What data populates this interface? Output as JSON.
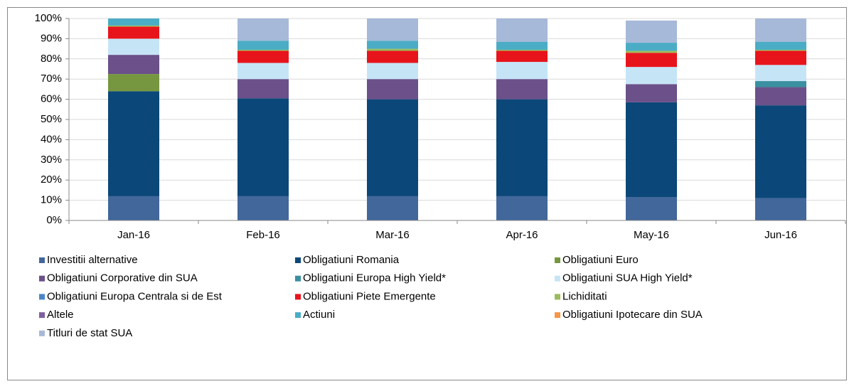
{
  "chart_data": {
    "type": "stacked_bar",
    "categories": [
      "Jan-16",
      "Feb-16",
      "Mar-16",
      "Apr-16",
      "May-16",
      "Jun-16"
    ],
    "ylim": [
      0,
      100
    ],
    "yticks": [
      {
        "value": 0,
        "label": "0%"
      },
      {
        "value": 10,
        "label": "10%"
      },
      {
        "value": 20,
        "label": "20%"
      },
      {
        "value": 30,
        "label": "30%"
      },
      {
        "value": 40,
        "label": "40%"
      },
      {
        "value": 50,
        "label": "50%"
      },
      {
        "value": 60,
        "label": "60%"
      },
      {
        "value": 70,
        "label": "70%"
      },
      {
        "value": 80,
        "label": "80%"
      },
      {
        "value": 90,
        "label": "90%"
      },
      {
        "value": 100,
        "label": "100%"
      }
    ],
    "grid": true,
    "legend": "bottom",
    "series": [
      {
        "name": "Investitii alternative",
        "color": "#41679b",
        "values": [
          12,
          12,
          12,
          12,
          11.5,
          11
        ]
      },
      {
        "name": "Obligatiuni Romania",
        "color": "#0b4778",
        "values": [
          52,
          48.5,
          48,
          48,
          47,
          46
        ]
      },
      {
        "name": "Obligatiuni Euro",
        "color": "#76973f",
        "values": [
          8.5,
          0,
          0,
          0,
          0,
          0
        ]
      },
      {
        "name": "Obligatiuni Corporative din SUA",
        "color": "#6b5089",
        "values": [
          9.5,
          9.5,
          10,
          10,
          9,
          9
        ]
      },
      {
        "name": "Obligatiuni Europa High Yield*",
        "color": "#3a8fa0",
        "values": [
          0,
          0,
          0,
          0,
          0,
          3
        ]
      },
      {
        "name": "Obligatiuni SUA High Yield*",
        "color": "#c5e5f7",
        "values": [
          8,
          8,
          8,
          8.5,
          8.5,
          8
        ]
      },
      {
        "name": "Obligatiuni Europa Centrala si de Est",
        "color": "#4a86c8",
        "values": [
          0,
          0,
          0,
          0,
          0,
          0
        ]
      },
      {
        "name": "Obligatiuni Piete Emergente",
        "color": "#e8141c",
        "values": [
          6,
          6,
          6,
          5.5,
          7,
          7
        ]
      },
      {
        "name": "Lichiditati",
        "color": "#9bbb59",
        "values": [
          0.5,
          0.5,
          1,
          0.5,
          1,
          0.5
        ]
      },
      {
        "name": "Altele",
        "color": "#7f5fa0",
        "values": [
          0,
          0,
          0,
          0,
          0,
          0
        ]
      },
      {
        "name": "Actiuni",
        "color": "#4bacc6",
        "values": [
          3.5,
          4.5,
          4,
          4,
          4,
          4
        ]
      },
      {
        "name": "Obligatiuni Ipotecare din SUA",
        "color": "#f79646",
        "values": [
          0,
          0,
          0,
          0,
          0,
          0
        ]
      },
      {
        "name": "Titluri de stat SUA",
        "color": "#a7b9d8",
        "values": [
          0,
          11,
          11,
          11.5,
          11,
          11.5
        ]
      }
    ]
  }
}
